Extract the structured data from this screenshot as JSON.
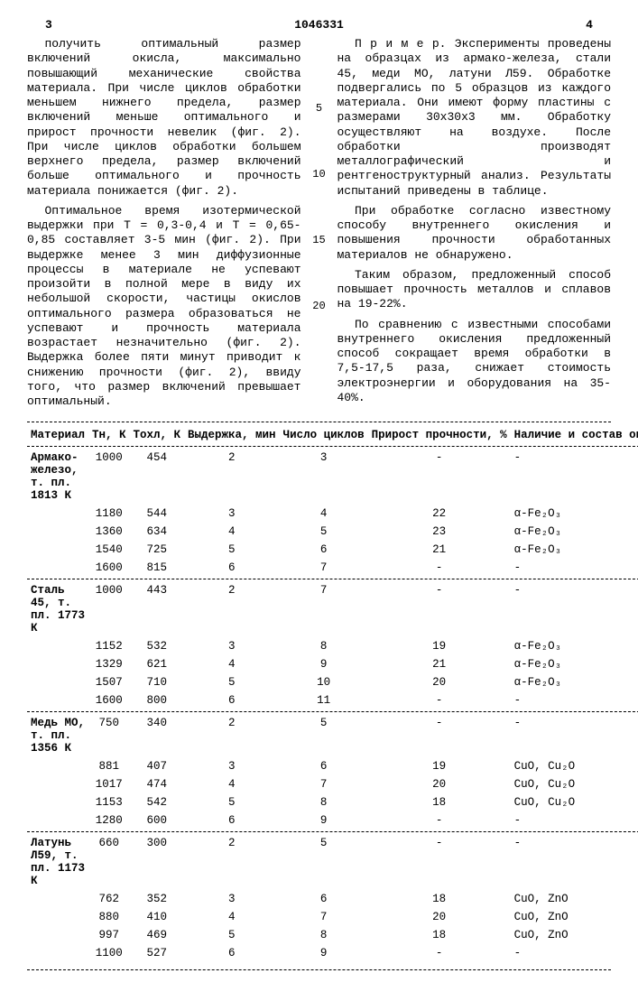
{
  "page": {
    "left_num": "3",
    "center_num": "1046331",
    "right_num": "4"
  },
  "left_col": {
    "p1": "получить оптимальный размер включений окисла, максимально повышающий механические свойства материала. При числе циклов обработки меньшем нижнего предела, размер включений меньше оптимального и прирост прочности невелик (фиг. 2). При числе циклов обработки большем верхнего предела, размер включений больше оптимального и прочность материала понижается (фиг. 2).",
    "p2": "Оптимальное время изотермической выдержки при Т = 0,3-0,4 и Т = 0,65-0,85 составляет 3-5 мин (фиг. 2). При выдержке менее 3 мин диффузионные процессы в материале не успевают произойти в полной мере в виду их небольшой скорости, частицы окислов оптимального размера образоваться не успевают и прочность материала возрастает незначительно (фиг. 2). Выдержка более пяти минут приводит к снижению прочности (фиг. 2), ввиду того, что размер включений превышает оптимальный."
  },
  "right_col": {
    "p1": "П р и м е р. Эксперименты проведены на образцах из армако-железа, стали 45, меди МО, латуни Л59. Обработке подвергались по 5 образцов из каждого материала. Они имеют форму пластины с размерами 30х30х3 мм. Обработку осуществляют на воздухе. После обработки производят металлографический и рентгеноструктурный анализ. Результаты испытаний приведены в таблице.",
    "p2": "При обработке согласно известному способу внутреннего окисления и повышения прочности обработанных материалов не обнаружено.",
    "p3": "Таким образом, предложенный способ повышает прочность металлов и сплавов на 19-22%.",
    "p4": "По сравнению с известными способами внутреннего окисления предложенный способ сокращает время обработки в 7,5-17,5 раза, снижает стоимость электроэнергии и оборудования на 35-40%."
  },
  "margin": [
    "5",
    "10",
    "15",
    "20"
  ],
  "table": {
    "headers": [
      "Материал",
      "Тн, К",
      "Тохл, К",
      "Выдержка, мин",
      "Число циклов",
      "Прирост прочности, %",
      "Наличие и состав окислов"
    ],
    "groups": [
      {
        "material": "Армако-железо, т. пл. 1813 К",
        "rows": [
          [
            "1000",
            "454",
            "2",
            "3",
            "-",
            "-"
          ],
          [
            "1180",
            "544",
            "3",
            "4",
            "22",
            "α-Fe₂O₃"
          ],
          [
            "1360",
            "634",
            "4",
            "5",
            "23",
            "α-Fe₂O₃"
          ],
          [
            "1540",
            "725",
            "5",
            "6",
            "21",
            "α-Fe₂O₃"
          ],
          [
            "1600",
            "815",
            "6",
            "7",
            "-",
            "-"
          ]
        ]
      },
      {
        "material": "Сталь 45, т. пл. 1773 К",
        "rows": [
          [
            "1000",
            "443",
            "2",
            "7",
            "-",
            "-"
          ],
          [
            "1152",
            "532",
            "3",
            "8",
            "19",
            "α-Fe₂O₃"
          ],
          [
            "1329",
            "621",
            "4",
            "9",
            "21",
            "α-Fe₂O₃"
          ],
          [
            "1507",
            "710",
            "5",
            "10",
            "20",
            "α-Fe₂O₃"
          ],
          [
            "1600",
            "800",
            "6",
            "11",
            "-",
            "-"
          ]
        ]
      },
      {
        "material": "Медь МО, т. пл. 1356 К",
        "rows": [
          [
            "750",
            "340",
            "2",
            "5",
            "-",
            "-"
          ],
          [
            "881",
            "407",
            "3",
            "6",
            "19",
            "CuO, Cu₂O"
          ],
          [
            "1017",
            "474",
            "4",
            "7",
            "20",
            "CuO, Cu₂O"
          ],
          [
            "1153",
            "542",
            "5",
            "8",
            "18",
            "CuO, Cu₂O"
          ],
          [
            "1280",
            "600",
            "6",
            "9",
            "-",
            "-"
          ]
        ]
      },
      {
        "material": "Латунь Л59, т. пл. 1173 К",
        "rows": [
          [
            "660",
            "300",
            "2",
            "5",
            "-",
            "-"
          ],
          [
            "762",
            "352",
            "3",
            "6",
            "18",
            "CuO, ZnO"
          ],
          [
            "880",
            "410",
            "4",
            "7",
            "20",
            "CuO, ZnO"
          ],
          [
            "997",
            "469",
            "5",
            "8",
            "18",
            "CuO, ZnO"
          ],
          [
            "1100",
            "527",
            "6",
            "9",
            "-",
            "-"
          ]
        ]
      }
    ]
  }
}
